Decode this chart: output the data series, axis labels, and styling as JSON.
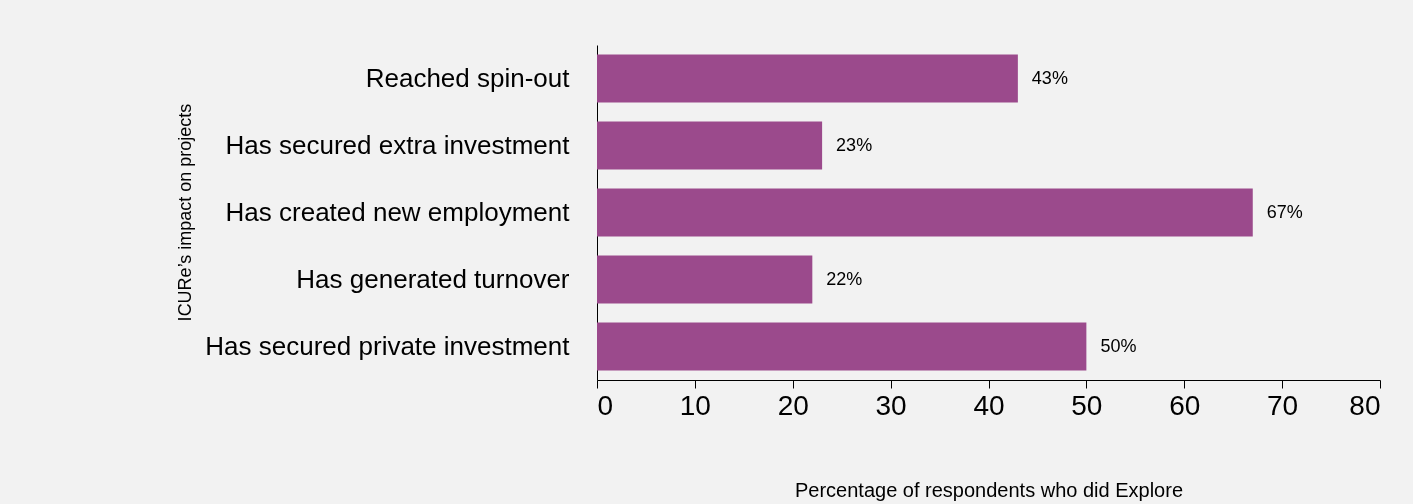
{
  "chart_data": {
    "type": "bar",
    "orientation": "horizontal",
    "xlabel": "Percentage of respondents who did Explore",
    "ylabel": "ICURe’s impact on projects",
    "categories": [
      "Reached spin-out",
      "Has secured extra investment",
      "Has created new employment",
      "Has generated turnover",
      "Has secured private investment"
    ],
    "values": [
      43,
      23,
      67,
      22,
      50
    ],
    "value_labels": [
      "43%",
      "23%",
      "67%",
      "22%",
      "50%"
    ],
    "color": "#9b4a8c",
    "xlim": [
      0,
      80
    ],
    "xticks": [
      0,
      10,
      20,
      30,
      40,
      50,
      60,
      70,
      80
    ],
    "grid": false
  }
}
